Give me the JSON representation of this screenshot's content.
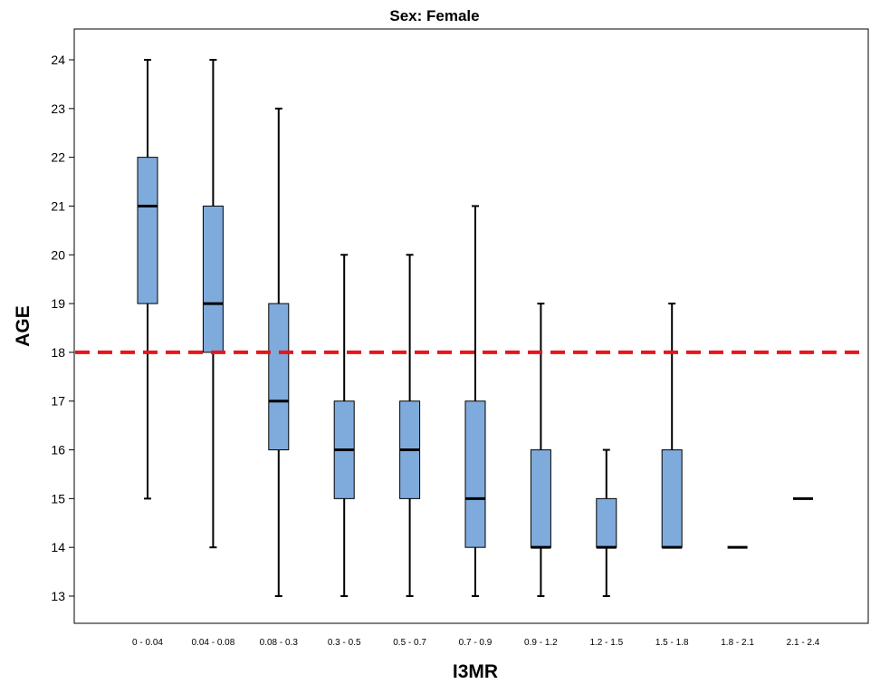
{
  "chart_data": {
    "type": "boxplot",
    "title": "Sex: Female",
    "xlabel": "I3MR",
    "ylabel": "AGE",
    "ylim": [
      12.6,
      24.8
    ],
    "y_ticks": [
      13,
      14,
      15,
      16,
      17,
      18,
      19,
      20,
      21,
      22,
      23,
      24
    ],
    "categories": [
      "0 - 0.04",
      "0.04 - 0.08",
      "0.08 - 0.3",
      "0.3 - 0.5",
      "0.5 - 0.7",
      "0.7 - 0.9",
      "0.9 - 1.2",
      "1.2 - 1.5",
      "1.5 - 1.8",
      "1.8 - 2.1",
      "2.1 - 2.4"
    ],
    "boxes": [
      {
        "min": 15,
        "q1": 19,
        "median": 21,
        "q3": 22,
        "max": 24
      },
      {
        "min": 14,
        "q1": 18,
        "median": 19,
        "q3": 21,
        "max": 24
      },
      {
        "min": 13,
        "q1": 16,
        "median": 17,
        "q3": 19,
        "max": 23
      },
      {
        "min": 13,
        "q1": 15,
        "median": 16,
        "q3": 17,
        "max": 20
      },
      {
        "min": 13,
        "q1": 15,
        "median": 16,
        "q3": 17,
        "max": 20
      },
      {
        "min": 13,
        "q1": 14,
        "median": 15,
        "q3": 17,
        "max": 21
      },
      {
        "min": 13,
        "q1": 14,
        "median": 14,
        "q3": 16,
        "max": 19
      },
      {
        "min": 13,
        "q1": 14,
        "median": 14,
        "q3": 15,
        "max": 16
      },
      {
        "min": 14,
        "q1": 14,
        "median": 14,
        "q3": 16,
        "max": 19
      },
      {
        "min": 14,
        "q1": 14,
        "median": 14,
        "q3": 14,
        "max": 14
      },
      {
        "min": 15,
        "q1": 15,
        "median": 15,
        "q3": 15,
        "max": 15
      }
    ],
    "reference_line": {
      "y": 18,
      "style": "dashed",
      "color": "#e8141a"
    },
    "box_fill": "#7fabdc",
    "grid": false,
    "legend": "none"
  }
}
